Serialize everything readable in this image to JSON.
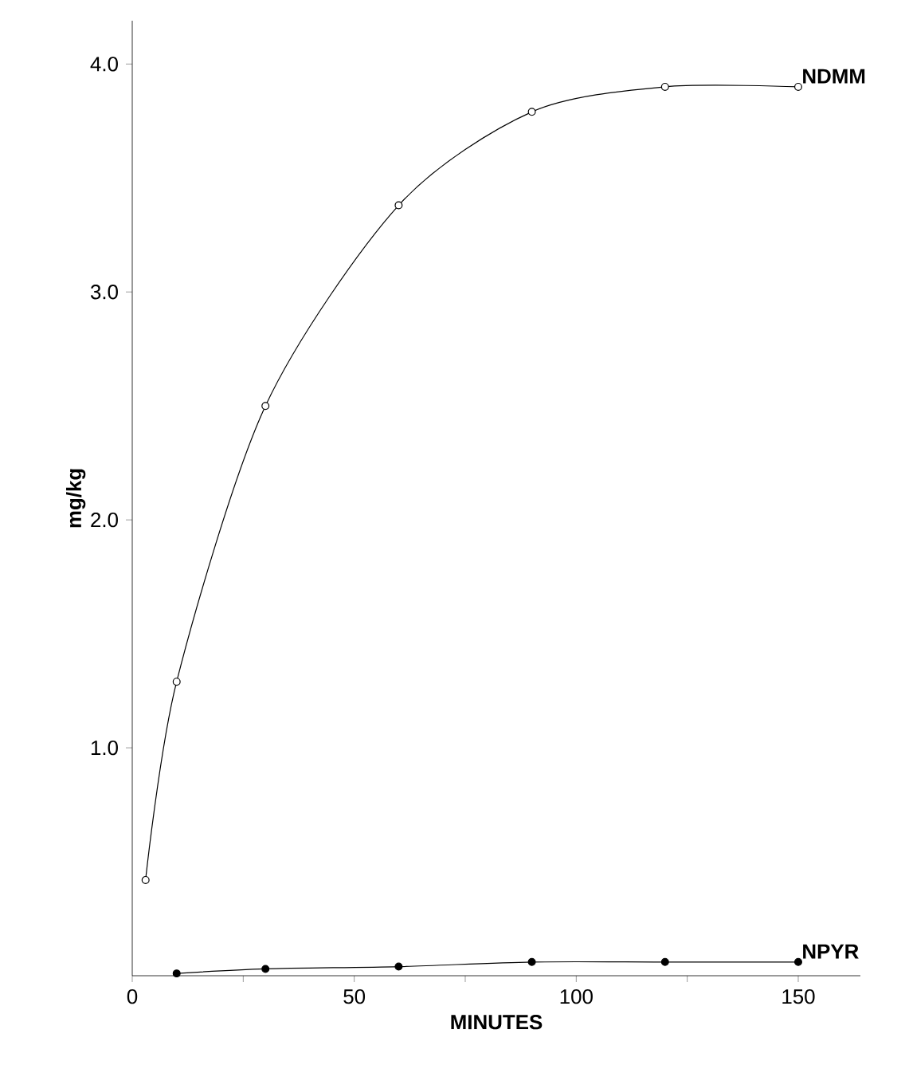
{
  "chart_data": {
    "type": "line",
    "xlabel": "MINUTES",
    "ylabel": "mg/kg",
    "xlim": [
      0,
      164
    ],
    "ylim": [
      0,
      4.19
    ],
    "xticks": [
      0,
      {
        "value": 25,
        "label": null
      },
      50,
      {
        "value": 75,
        "label": null
      },
      100,
      {
        "value": 125,
        "label": null
      },
      150
    ],
    "yticks": [
      {
        "value": 1,
        "label": "1.0"
      },
      {
        "value": 2,
        "label": "2.0"
      },
      {
        "value": 3,
        "label": "3.0"
      },
      {
        "value": 4,
        "label": "4.0"
      }
    ],
    "grid": false,
    "legend": false,
    "line_style": "solid",
    "series": [
      {
        "name": "NDMM",
        "color": "#000000",
        "marker": "circle",
        "x": [
          3,
          10,
          30,
          60,
          90,
          120,
          150
        ],
        "values": [
          0.42,
          1.29,
          2.5,
          3.38,
          3.79,
          3.9,
          3.9
        ]
      },
      {
        "name": "NPYR",
        "color": "#000000",
        "marker": "circle",
        "x": [
          10,
          30,
          60,
          90,
          120,
          150
        ],
        "values": [
          0.01,
          0.03,
          0.04,
          0.06,
          0.06,
          0.06
        ]
      }
    ]
  }
}
